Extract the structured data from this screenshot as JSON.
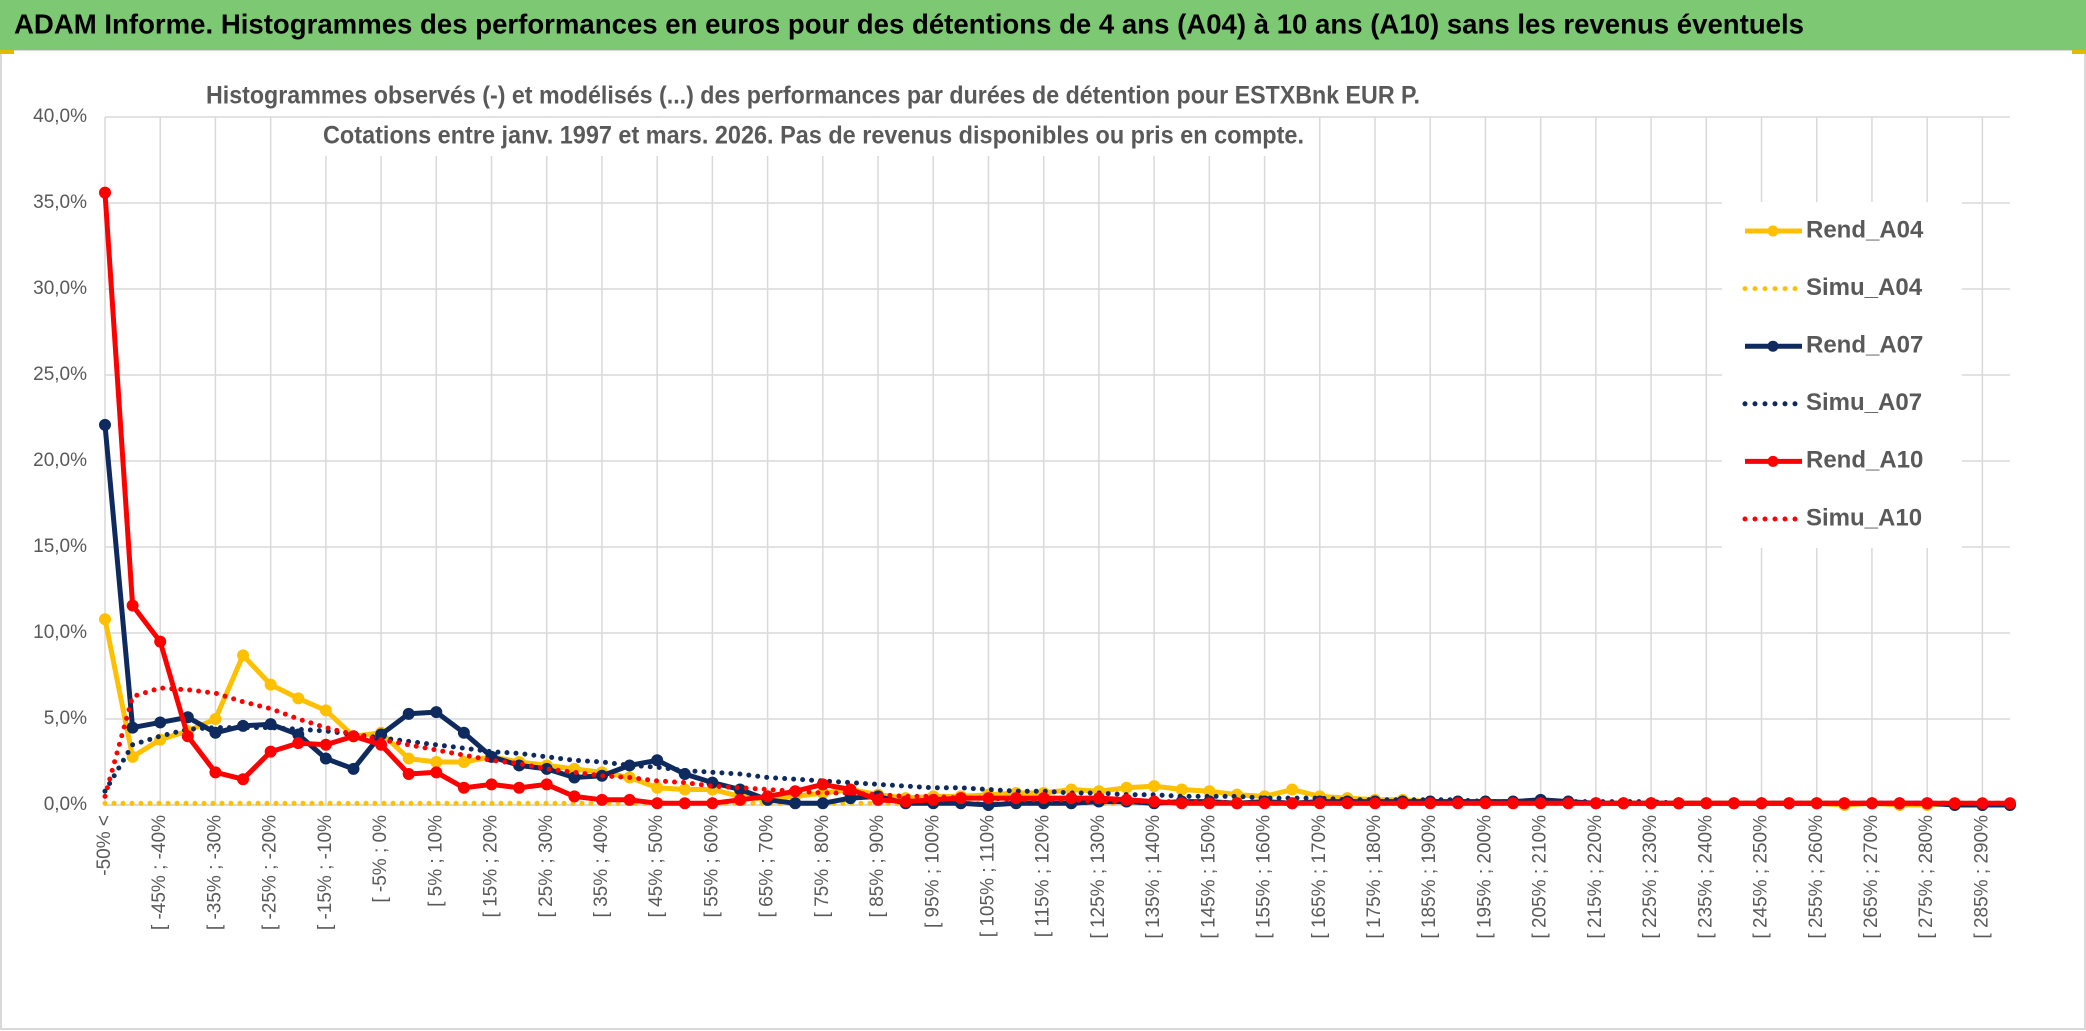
{
  "header": {
    "title": "ADAM Informe. Histogrammes des performances en euros pour des détentions de 4 ans (A04) à 10 ans (A10) sans les revenus éventuels"
  },
  "chart_data": {
    "type": "line",
    "title": "Histogrammes observés (-) et modélisés (...) des performances par durées de détention pour ESTXBnk EUR P.",
    "subtitle": "Cotations entre janv. 1997 et mars. 2026. Pas de revenus disponibles ou pris en compte.",
    "categories": [
      "-50% <",
      null,
      "[ -45% ; -40%",
      null,
      "[ -35% ; -30%",
      null,
      "[ -25% ; -20%",
      null,
      "[ -15% ; -10%",
      null,
      "[ -5% ; 0%",
      null,
      "[ 5% ; 10%",
      null,
      "[ 15% ; 20%",
      null,
      "[ 25% ; 30%",
      null,
      "[ 35% ; 40%",
      null,
      "[ 45% ; 50%",
      null,
      "[ 55% ; 60%",
      null,
      "[ 65% ; 70%",
      null,
      "[ 75% ; 80%",
      null,
      "[ 85% ; 90%",
      null,
      "[ 95% ; 100%",
      null,
      "[ 105% ; 110%",
      null,
      "[ 115% ; 120%",
      null,
      "[ 125% ; 130%",
      null,
      "[ 135% ; 140%",
      null,
      "[ 145% ; 150%",
      null,
      "[ 155% ; 160%",
      null,
      "[ 165% ; 170%",
      null,
      "[ 175% ; 180%",
      null,
      "[ 185% ; 190%",
      null,
      "[ 195% ; 200%",
      null,
      "[ 205% ; 210%",
      null,
      "[ 215% ; 220%",
      null,
      "[ 225% ; 230%",
      null,
      "[ 235% ; 240%",
      null,
      "[ 245% ; 250%",
      null,
      "[ 255% ; 260%",
      null,
      "[ 265% ; 270%",
      null,
      "[ 275% ; 280%",
      null,
      "[ 285% ; 290%",
      null
    ],
    "series": [
      {
        "name": "Rend_A04",
        "color": "#ffc000",
        "style": "solid",
        "markers": true,
        "values": [
          10.8,
          2.8,
          3.8,
          4.3,
          5.0,
          8.7,
          7.0,
          6.2,
          5.5,
          4.0,
          4.2,
          2.7,
          2.5,
          2.5,
          2.8,
          2.5,
          2.3,
          2.1,
          1.9,
          1.6,
          1.0,
          0.9,
          0.9,
          0.5,
          0.3,
          0.5,
          0.7,
          0.9,
          0.6,
          0.4,
          0.5,
          0.5,
          0.6,
          0.7,
          0.7,
          0.9,
          0.8,
          1.0,
          1.1,
          0.9,
          0.8,
          0.6,
          0.5,
          0.9,
          0.5,
          0.4,
          0.3,
          0.3,
          0.2,
          0.2,
          0.2,
          0.1,
          0.2,
          0.1,
          0.1,
          0.1,
          0.1,
          0.1,
          0.1,
          0.1,
          0.1,
          0.1,
          0.1,
          0.0,
          0.1,
          0.0,
          0.0,
          0.1,
          0.0,
          0.0
        ]
      },
      {
        "name": "Simu_A04",
        "color": "#ffc000",
        "style": "dotted",
        "markers": false,
        "values": [
          0.1,
          0.1,
          0.1,
          0.1,
          0.1,
          0.1,
          0.1,
          0.1,
          0.1,
          0.1,
          0.1,
          0.1,
          0.1,
          0.1,
          0.1,
          0.1,
          0.1,
          0.1,
          0.1,
          0.1,
          0.1,
          0.1,
          0.1,
          0.1,
          0.1,
          0.1,
          0.1,
          0.1,
          0.1,
          0.1,
          0.1,
          0.1,
          0.1,
          0.1,
          0.1,
          0.1,
          0.1,
          0.1,
          0.1,
          0.1,
          0.1,
          0.1,
          0.1,
          0.1,
          0.1,
          0.1,
          0.1,
          0.1,
          0.1,
          0.1,
          0.1,
          0.1,
          0.1,
          0.1,
          0.1,
          0.1,
          0.1,
          0.1,
          0.1,
          0.1,
          0.1,
          0.1,
          0.1,
          0.1,
          0.1,
          0.1,
          0.1,
          0.1,
          0.1,
          0.1
        ]
      },
      {
        "name": "Rend_A07",
        "color": "#0e2a5e",
        "style": "solid",
        "markers": true,
        "values": [
          22.1,
          4.5,
          4.8,
          5.1,
          4.2,
          4.6,
          4.7,
          4.1,
          2.7,
          2.1,
          4.1,
          5.3,
          5.4,
          4.2,
          2.8,
          2.3,
          2.1,
          1.6,
          1.7,
          2.3,
          2.6,
          1.8,
          1.3,
          0.9,
          0.3,
          0.1,
          0.1,
          0.4,
          0.5,
          0.1,
          0.1,
          0.1,
          0.0,
          0.1,
          0.1,
          0.1,
          0.2,
          0.2,
          0.1,
          0.2,
          0.2,
          0.1,
          0.2,
          0.1,
          0.2,
          0.2,
          0.2,
          0.2,
          0.2,
          0.2,
          0.2,
          0.2,
          0.3,
          0.2,
          0.1,
          0.1,
          0.1,
          0.1,
          0.1,
          0.1,
          0.1,
          0.1,
          0.1,
          0.1,
          0.1,
          0.1,
          0.1,
          0.0,
          0.0,
          0.0
        ]
      },
      {
        "name": "Simu_A07",
        "color": "#0e2a5e",
        "style": "dotted",
        "markers": false,
        "values": [
          0.8,
          3.5,
          4.0,
          4.4,
          4.5,
          4.5,
          4.5,
          4.4,
          4.3,
          4.1,
          3.9,
          3.7,
          3.5,
          3.3,
          3.1,
          3.0,
          2.8,
          2.6,
          2.5,
          2.3,
          2.2,
          2.0,
          1.9,
          1.8,
          1.6,
          1.5,
          1.4,
          1.3,
          1.2,
          1.1,
          1.0,
          1.0,
          0.9,
          0.8,
          0.8,
          0.7,
          0.7,
          0.6,
          0.6,
          0.5,
          0.5,
          0.5,
          0.4,
          0.4,
          0.4,
          0.3,
          0.3,
          0.3,
          0.3,
          0.3,
          0.2,
          0.2,
          0.2,
          0.2,
          0.2,
          0.2,
          0.2,
          0.1,
          0.1,
          0.1,
          0.1,
          0.1,
          0.1,
          0.1,
          0.1,
          0.1,
          0.1,
          0.1,
          0.1,
          0.1
        ]
      },
      {
        "name": "Rend_A10",
        "color": "#ff0000",
        "style": "solid",
        "markers": true,
        "values": [
          35.6,
          11.6,
          9.5,
          4.0,
          1.9,
          1.5,
          3.1,
          3.6,
          3.5,
          4.0,
          3.5,
          1.8,
          1.9,
          1.0,
          1.2,
          1.0,
          1.2,
          0.5,
          0.3,
          0.3,
          0.1,
          0.1,
          0.1,
          0.3,
          0.5,
          0.8,
          1.2,
          0.9,
          0.3,
          0.2,
          0.3,
          0.4,
          0.4,
          0.4,
          0.4,
          0.4,
          0.4,
          0.3,
          0.2,
          0.1,
          0.1,
          0.1,
          0.1,
          0.1,
          0.1,
          0.1,
          0.1,
          0.1,
          0.1,
          0.1,
          0.1,
          0.1,
          0.1,
          0.1,
          0.1,
          0.1,
          0.1,
          0.1,
          0.1,
          0.1,
          0.1,
          0.1,
          0.1,
          0.1,
          0.1,
          0.1,
          0.1,
          0.1,
          0.1,
          0.1
        ]
      },
      {
        "name": "Simu_A10",
        "color": "#ff0000",
        "style": "dotted",
        "markers": false,
        "values": [
          0.5,
          6.3,
          6.8,
          6.7,
          6.5,
          6.0,
          5.6,
          5.0,
          4.5,
          4.1,
          3.8,
          3.5,
          3.2,
          2.9,
          2.6,
          2.4,
          2.1,
          1.9,
          1.7,
          1.6,
          1.4,
          1.3,
          1.1,
          1.0,
          0.9,
          0.8,
          0.7,
          0.7,
          0.6,
          0.5,
          0.5,
          0.4,
          0.4,
          0.3,
          0.3,
          0.3,
          0.2,
          0.2,
          0.2,
          0.2,
          0.2,
          0.1,
          0.1,
          0.1,
          0.1,
          0.1,
          0.1,
          0.1,
          0.1,
          0.1,
          0.1,
          0.1,
          0.1,
          0.1,
          0.1,
          0.1,
          0.1,
          0.1,
          0.1,
          0.1,
          0.1,
          0.1,
          0.1,
          0.1,
          0.1,
          0.1,
          0.1,
          0.1,
          0.1,
          0.1
        ]
      }
    ],
    "ylim": [
      0,
      40
    ],
    "yticks": [
      {
        "value": 0,
        "label": "0,0%"
      },
      {
        "value": 5,
        "label": "5,0%"
      },
      {
        "value": 10,
        "label": "10,0%"
      },
      {
        "value": 15,
        "label": "15,0%"
      },
      {
        "value": 20,
        "label": "20,0%"
      },
      {
        "value": 25,
        "label": "25,0%"
      },
      {
        "value": 30,
        "label": "30,0%"
      },
      {
        "value": 35,
        "label": "35,0%"
      },
      {
        "value": 40,
        "label": "40,0%"
      }
    ],
    "grid": true,
    "legend": "right"
  }
}
